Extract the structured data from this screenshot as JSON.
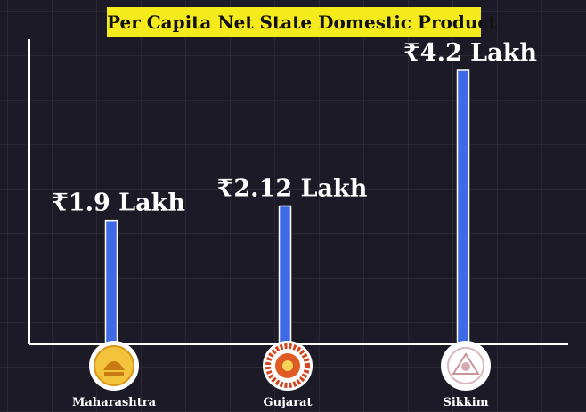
{
  "chart_data": {
    "type": "bar",
    "title": "Per Capita Net State Domestic Product",
    "categories": [
      "Maharashtra",
      "Gujarat",
      "Sikkim"
    ],
    "values": [
      1.9,
      2.12,
      4.2
    ],
    "value_labels": [
      "₹1.9 Lakh",
      "₹2.12 Lakh",
      "₹4.2 Lakh"
    ],
    "unit": "Lakh",
    "xlabel": "",
    "ylabel": "",
    "ylim": [
      0,
      4.8
    ],
    "grid": true,
    "legend": "none",
    "icons": [
      "maharashtra-emblem-icon",
      "gujarat-emblem-icon",
      "sikkim-emblem-icon"
    ]
  },
  "colors": {
    "background": "#1b1a26",
    "bar": "#3f6ae6",
    "title_bg": "#f5ea1b",
    "axis": "#ffffff",
    "text": "#ffffff"
  }
}
